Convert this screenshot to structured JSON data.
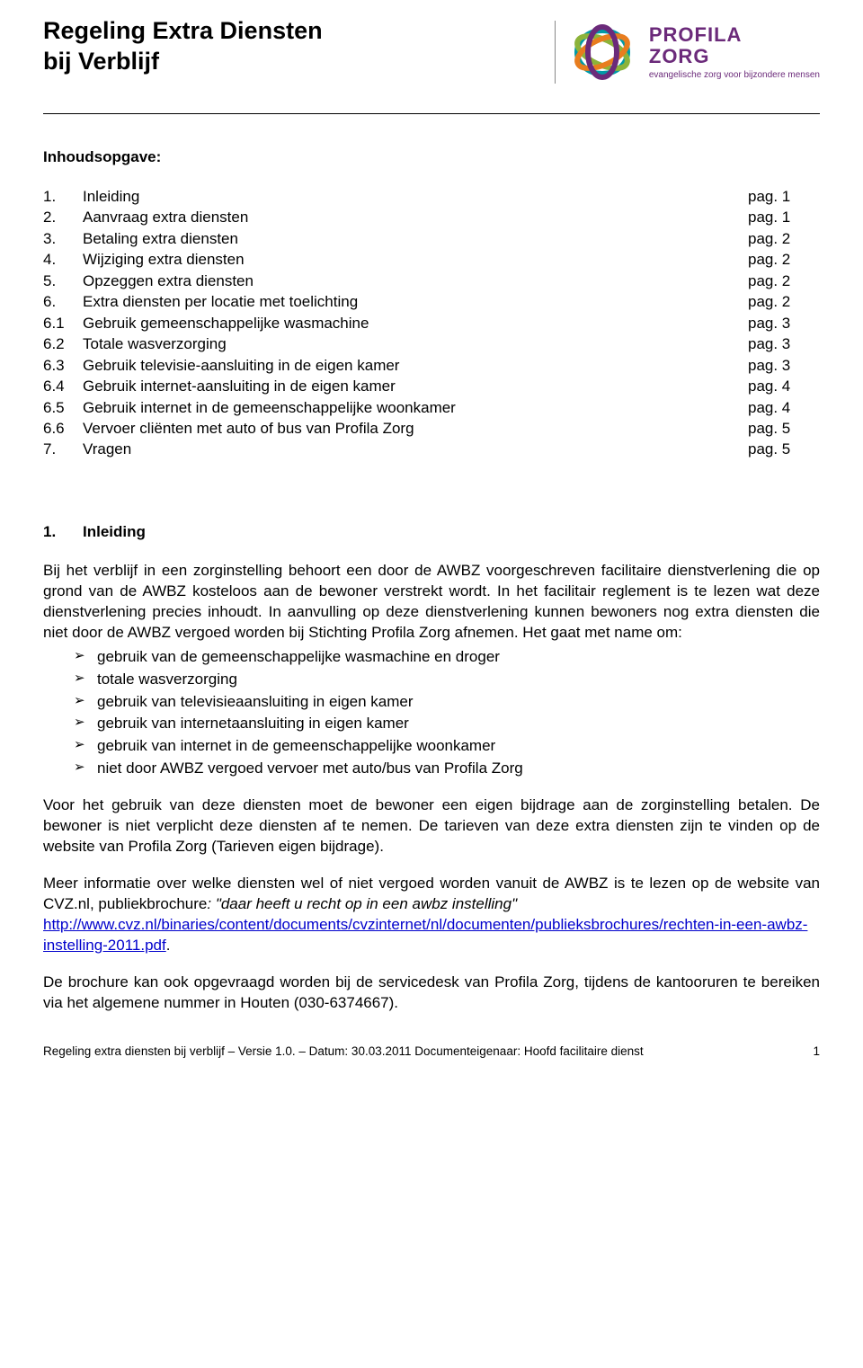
{
  "header": {
    "title_line1": "Regeling Extra Diensten",
    "title_line2": "bij Verblijf",
    "logo_name1": "PROFILA",
    "logo_name2": "ZORG",
    "logo_tag": "evangelische zorg voor bijzondere mensen",
    "logo_colors": {
      "purple": "#6b2a7a",
      "teal": "#009aa6",
      "orange": "#e87d1e",
      "green": "#8cb33a"
    }
  },
  "toc": {
    "title": "Inhoudsopgave:",
    "items": [
      {
        "num": "1.",
        "label": "Inleiding",
        "page": "pag. 1"
      },
      {
        "num": "2.",
        "label": "Aanvraag extra diensten",
        "page": "pag. 1"
      },
      {
        "num": "3.",
        "label": "Betaling extra diensten",
        "page": "pag. 2"
      },
      {
        "num": "4.",
        "label": "Wijziging extra diensten",
        "page": "pag. 2"
      },
      {
        "num": "5.",
        "label": "Opzeggen extra diensten",
        "page": "pag. 2"
      },
      {
        "num": "6.",
        "label": "Extra diensten per locatie met toelichting",
        "page": "pag. 2"
      },
      {
        "num": "6.1",
        "label": "Gebruik gemeenschappelijke wasmachine",
        "page": "pag. 3"
      },
      {
        "num": "6.2",
        "label": "Totale wasverzorging",
        "page": "pag. 3"
      },
      {
        "num": "6.3",
        "label": "Gebruik televisie-aansluiting in de eigen kamer",
        "page": "pag. 3"
      },
      {
        "num": "6.4",
        "label": "Gebruik internet-aansluiting in de eigen kamer",
        "page": "pag. 4"
      },
      {
        "num": "6.5",
        "label": "Gebruik internet in de gemeenschappelijke woonkamer",
        "page": "pag. 4"
      },
      {
        "num": "6.6",
        "label": "Vervoer cliënten met auto of bus van Profila Zorg",
        "page": "pag. 5"
      },
      {
        "num": "7.",
        "label": "Vragen",
        "page": "pag. 5"
      }
    ]
  },
  "section1": {
    "num": "1.",
    "title": "Inleiding",
    "para1": "Bij het verblijf in een zorginstelling behoort een door de AWBZ voorgeschreven facilitaire dienstverlening die op grond van de AWBZ kosteloos aan de bewoner verstrekt wordt. In het facilitair reglement is te lezen wat deze dienstverlening precies inhoudt. In aanvulling op deze dienstverlening kunnen bewoners nog extra diensten die niet door de AWBZ vergoed worden bij Stichting Profila Zorg afnemen. Het gaat met name om:",
    "bullets": [
      "gebruik van de gemeenschappelijke wasmachine en droger",
      "totale wasverzorging",
      "gebruik van televisieaansluiting in eigen kamer",
      "gebruik van internetaansluiting in eigen kamer",
      "gebruik van internet in de gemeenschappelijke woonkamer",
      "niet door AWBZ vergoed vervoer met auto/bus van Profila Zorg"
    ],
    "para2": "Voor het gebruik van deze diensten moet de bewoner een eigen bijdrage aan de zorginstelling betalen. De bewoner is niet verplicht deze diensten af te nemen. De tarieven van deze extra diensten zijn te vinden op de website van Profila Zorg (Tarieven eigen bijdrage).",
    "para3_pre": "Meer informatie over welke diensten wel of niet vergoed worden vanuit de AWBZ is te lezen op de website van CVZ.nl, publiekbrochure",
    "para3_quote": ": \"daar heeft u recht op in een awbz instelling\"",
    "link_text": "http://www.cvz.nl/binaries/content/documents/cvzinternet/nl/documenten/publieksbrochures/rechten-in-een-awbz-instelling-2011.pdf",
    "link_suffix": ".",
    "para4": "De brochure kan ook opgevraagd worden bij de servicedesk van Profila Zorg, tijdens de kantooruren te bereiken via het algemene nummer in Houten (030-6374667)."
  },
  "footer": {
    "left": "Regeling extra diensten bij verblijf – Versie 1.0. – Datum: 30.03.2011 Documenteigenaar: Hoofd facilitaire dienst",
    "page": "1"
  }
}
